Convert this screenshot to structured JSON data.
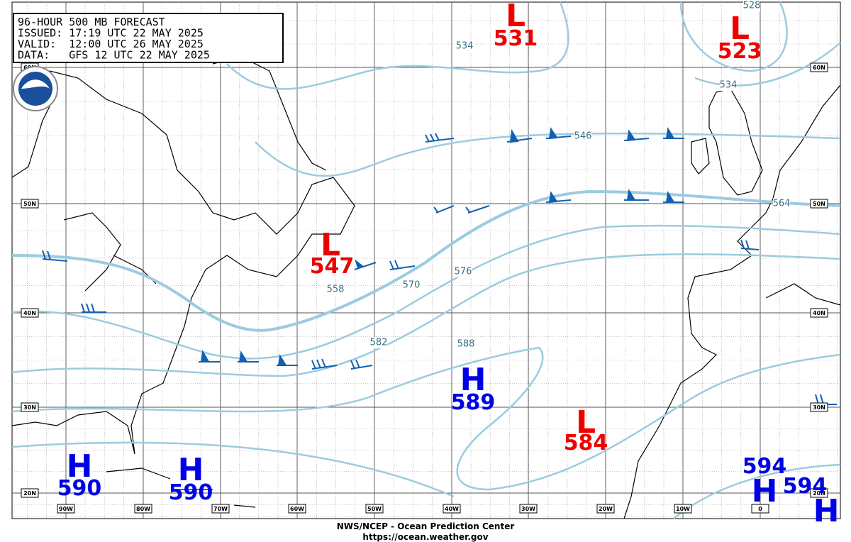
{
  "header": {
    "lines": [
      "96-HOUR 500 MB FORECAST",
      "ISSUED: 17:19 UTC 22 MAY 2025",
      "VALID:  12:00 UTC 26 MAY 2025",
      "DATA:   GFS 12 UTC 22 MAY 2025"
    ]
  },
  "center_letters": [
    "L",
    "L",
    "L",
    "H",
    "L",
    "H",
    "H",
    "H",
    "H"
  ],
  "center_values": [
    531,
    523,
    547,
    589,
    584,
    590,
    590,
    594,
    594
  ],
  "contour_labels": [
    534,
    528,
    534,
    546,
    564,
    558,
    570,
    576,
    582,
    588
  ],
  "lat_labels": [
    "60N",
    "50N",
    "40N",
    "30N",
    "20N"
  ],
  "lon_labels": [
    "90W",
    "80W",
    "70W",
    "60W",
    "50W",
    "40W",
    "30W",
    "20W",
    "10W",
    "0"
  ],
  "footer": {
    "agency": "NWS/NCEP - Ocean Prediction Center",
    "url": "https://ocean.weather.gov"
  }
}
